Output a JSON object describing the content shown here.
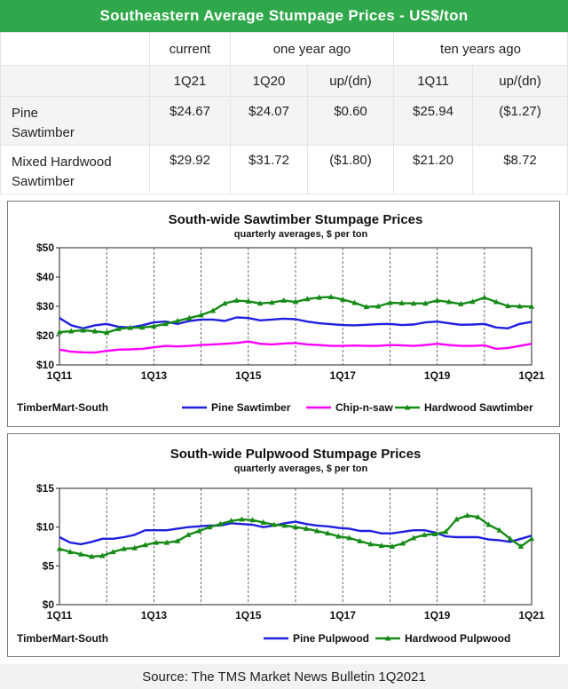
{
  "header": {
    "title": "Southeastern Average Stumpage Prices - US$/ton"
  },
  "table": {
    "group_headers": [
      "current",
      "one year ago",
      "ten years ago"
    ],
    "sub_headers": [
      "1Q21",
      "1Q20",
      "up/(dn)",
      "1Q11",
      "up/(dn)"
    ],
    "rows": [
      {
        "label_line1": "Pine",
        "label_line2": "Sawtimber",
        "values": [
          "$24.67",
          "$24.07",
          "$0.60",
          "$25.94",
          "($1.27)"
        ]
      },
      {
        "label_line1": "Mixed Hardwood",
        "label_line2": "Sawtimber",
        "values": [
          "$29.92",
          "$31.72",
          "($1.80)",
          "$21.20",
          "$8.72"
        ]
      }
    ]
  },
  "colors": {
    "header_green": "#2ea84a",
    "pine": "#1f1fe0",
    "chip": "#ff00ff",
    "hardwood": "#168a16"
  },
  "chart_data": [
    {
      "type": "line",
      "title": "South-wide Sawtimber Stumpage Prices",
      "subtitle": "quarterly averages, $ per ton",
      "source_note": "TimberMart-South",
      "x_ticks": [
        "1Q11",
        "1Q13",
        "1Q15",
        "1Q17",
        "1Q19",
        "1Q21"
      ],
      "y_ticks": [
        "$10",
        "$20",
        "$30",
        "$40",
        "$50"
      ],
      "ylim": [
        10,
        50
      ],
      "grid": "vertical dashed at year boundaries",
      "legend_position": "bottom",
      "series": [
        {
          "name": "Pine Sawtimber",
          "color": "#1f1fe0",
          "marker": "none",
          "values": [
            26,
            23.5,
            22.5,
            23.5,
            24,
            23,
            22.8,
            23.5,
            24.5,
            24.8,
            24,
            25,
            25.5,
            25.5,
            25,
            26.2,
            26,
            25.2,
            25.5,
            25.8,
            25.6,
            24.8,
            24.2,
            23.9,
            23.6,
            23.5,
            23.7,
            23.9,
            24,
            23.6,
            23.8,
            24.5,
            24.8,
            24.2,
            23.7,
            23.8,
            24,
            22.8,
            22.5,
            24,
            24.67
          ]
        },
        {
          "name": "Chip-n-saw",
          "color": "#ff00ff",
          "marker": "none",
          "values": [
            15.2,
            14.5,
            14.3,
            14.2,
            14.8,
            15.2,
            15.3,
            15.5,
            16,
            16.5,
            16.3,
            16.5,
            16.8,
            17,
            17.2,
            17.5,
            18,
            17.2,
            17,
            17.3,
            17.5,
            17,
            16.8,
            16.5,
            16.5,
            16.6,
            16.5,
            16.5,
            16.8,
            16.7,
            16.5,
            16.8,
            17.2,
            16.8,
            16.5,
            16.5,
            16.7,
            15.5,
            15.8,
            16.5,
            17.2
          ]
        },
        {
          "name": "Hardwood Sawtimber",
          "color": "#168a16",
          "marker": "triangle",
          "values": [
            21.2,
            21.5,
            21.8,
            21.5,
            21,
            22.3,
            22.7,
            22.8,
            23.2,
            24,
            25,
            26,
            27,
            28.5,
            31,
            32,
            31.7,
            31,
            31.3,
            32,
            31.5,
            32.5,
            33,
            33.2,
            32.3,
            31.2,
            29.8,
            30,
            31.2,
            31.1,
            31,
            31,
            32,
            31.5,
            30.8,
            31.6,
            33,
            31.5,
            30.1,
            30,
            29.92
          ]
        }
      ]
    },
    {
      "type": "line",
      "title": "South-wide Pulpwood Stumpage Prices",
      "subtitle": "quarterly averages, $ per ton",
      "source_note": "TimberMart-South",
      "x_ticks": [
        "1Q11",
        "1Q13",
        "1Q15",
        "1Q17",
        "1Q19",
        "1Q21"
      ],
      "y_ticks": [
        "$0",
        "$5",
        "$10",
        "$15"
      ],
      "ylim": [
        0,
        15
      ],
      "grid": "vertical dashed at year boundaries",
      "legend_position": "bottom",
      "series": [
        {
          "name": "Pine Pulpwood",
          "color": "#1f1fe0",
          "marker": "none",
          "values": [
            8.7,
            8,
            7.8,
            8.1,
            8.5,
            8.5,
            8.7,
            9,
            9.6,
            9.6,
            9.6,
            9.8,
            10,
            10.1,
            10.2,
            10.2,
            10.5,
            10.4,
            10.3,
            10,
            10.2,
            10.5,
            10.7,
            10.4,
            10.2,
            10.1,
            9.9,
            9.8,
            9.5,
            9.5,
            9.2,
            9.2,
            9.4,
            9.6,
            9.6,
            9.3,
            8.8,
            8.7,
            8.7,
            8.7,
            8.4,
            8.3,
            8.1,
            8.5,
            8.9
          ]
        },
        {
          "name": "Hardwood Pulpwood",
          "color": "#168a16",
          "marker": "triangle",
          "values": [
            7.2,
            6.8,
            6.5,
            6.2,
            6.3,
            6.8,
            7.2,
            7.3,
            7.7,
            8,
            8,
            8.2,
            9,
            9.5,
            10,
            10.4,
            10.8,
            11,
            10.9,
            10.6,
            10.3,
            10.2,
            10,
            9.8,
            9.5,
            9.2,
            8.8,
            8.6,
            8.2,
            7.8,
            7.6,
            7.5,
            7.9,
            8.6,
            9,
            9.1,
            9.4,
            11,
            11.5,
            11.3,
            10.3,
            9.6,
            8.5,
            7.5,
            8.5
          ]
        }
      ]
    }
  ],
  "footer": {
    "source": "Source: The TMS Market News Bulletin 1Q2021"
  }
}
